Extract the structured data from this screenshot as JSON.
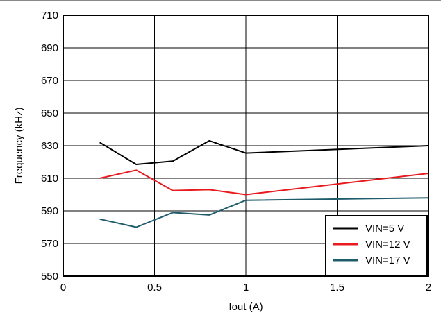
{
  "chart_data": {
    "type": "line",
    "title": "",
    "xlabel": "Iout (A)",
    "ylabel": "Frequency (kHz)",
    "xlim": [
      0,
      2
    ],
    "ylim": [
      550,
      710
    ],
    "xticks": [
      0,
      0.5,
      1,
      1.5,
      2
    ],
    "yticks": [
      550,
      570,
      590,
      610,
      630,
      650,
      670,
      690,
      710
    ],
    "xtick_labels": [
      "0",
      "0.5",
      "1",
      "1.5",
      "2"
    ],
    "ytick_labels": [
      "550",
      "570",
      "590",
      "610",
      "630",
      "650",
      "670",
      "690",
      "710"
    ],
    "grid": true,
    "legend_position": "bottom-right",
    "series": [
      {
        "name": "VIN=5 V",
        "color": "#000000",
        "x": [
          0.2,
          0.4,
          0.6,
          0.8,
          1.0,
          2.0
        ],
        "y": [
          632,
          618.5,
          620.5,
          633,
          625.5,
          630
        ]
      },
      {
        "name": "VIN=12 V",
        "color": "#e8191f",
        "x": [
          0.2,
          0.4,
          0.6,
          0.8,
          1.0,
          2.0
        ],
        "y": [
          610,
          615,
          602.5,
          603,
          600,
          613
        ]
      },
      {
        "name": "VIN=17 V",
        "color": "#1f5c6b",
        "x": [
          0.2,
          0.4,
          0.6,
          0.8,
          1.0,
          2.0
        ],
        "y": [
          585,
          580,
          589,
          587.5,
          596.5,
          598
        ]
      }
    ]
  }
}
